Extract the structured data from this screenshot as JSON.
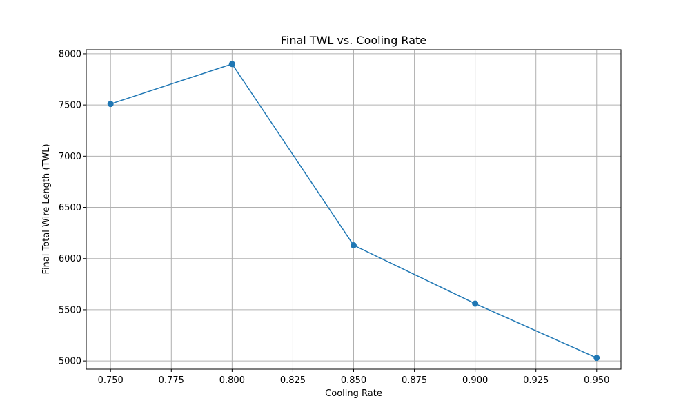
{
  "chart_data": {
    "type": "line",
    "title": "Final TWL vs. Cooling Rate",
    "xlabel": "Cooling Rate",
    "ylabel": "Final Total Wire Length (TWL)",
    "x": [
      0.75,
      0.8,
      0.85,
      0.9,
      0.95
    ],
    "series": [
      {
        "values": [
          7510,
          7900,
          6130,
          5560,
          5030
        ],
        "color": "#1f77b4",
        "marker": "circle"
      }
    ],
    "xlim": [
      0.74,
      0.96
    ],
    "ylim": [
      4920,
      8040
    ],
    "x_ticks": [
      "0.750",
      "0.775",
      "0.800",
      "0.825",
      "0.850",
      "0.875",
      "0.900",
      "0.925",
      "0.950"
    ],
    "x_tick_values": [
      0.75,
      0.775,
      0.8,
      0.825,
      0.85,
      0.875,
      0.9,
      0.925,
      0.95
    ],
    "y_ticks": [
      "5000",
      "5500",
      "6000",
      "6500",
      "7000",
      "7500",
      "8000"
    ],
    "y_tick_values": [
      5000,
      5500,
      6000,
      6500,
      7000,
      7500,
      8000
    ],
    "grid": true,
    "legend": false
  }
}
